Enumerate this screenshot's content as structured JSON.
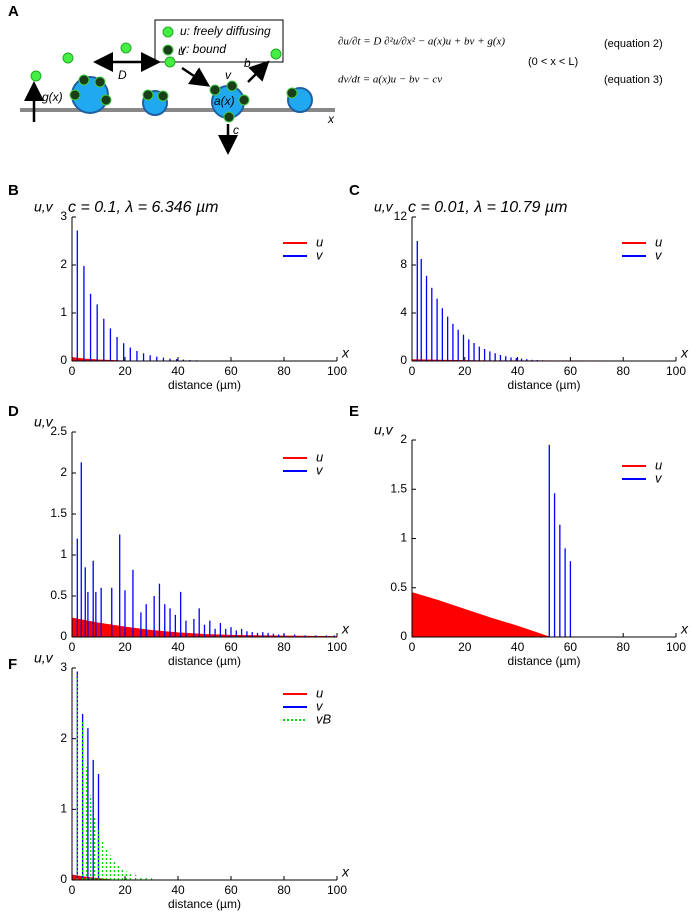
{
  "panel_a": {
    "letter": "A",
    "legend": [
      "u: freely diffusing",
      "v: bound"
    ],
    "labels": {
      "D": "D",
      "u": "u",
      "v": "v",
      "b": "b",
      "a": "a(x)",
      "g": "g(x)",
      "c": "c",
      "x": "x"
    },
    "equations": [
      {
        "text": "∂u/∂t = D ∂²u/∂x² − a(x)u + bv + g(x)",
        "tag": "(equation 2)"
      },
      {
        "text": "dv/dt = a(x)u − bv − cv",
        "tag": "(equation 3)"
      }
    ],
    "domain": "(0 < x < L)"
  },
  "chart_data": [
    {
      "type": "spike",
      "panel": "B",
      "ylabel": "u,v",
      "title": "c = 0.1, λ = 6.346 µm",
      "xlabel": "distance (µm)",
      "x_symbol": "x",
      "xlim": [
        0,
        100
      ],
      "ylim": [
        0,
        3
      ],
      "xticks": [
        0,
        20,
        40,
        60,
        80,
        100
      ],
      "yticks": [
        0,
        1,
        2,
        3
      ],
      "series": [
        {
          "name": "u",
          "color": "#ff0000",
          "kind": "area",
          "x": [
            0,
            5,
            10,
            15,
            20,
            100
          ],
          "values": [
            0.07,
            0.04,
            0.02,
            0.01,
            0,
            0
          ]
        },
        {
          "name": "v",
          "color": "#0000ff",
          "kind": "stem",
          "x": [
            2,
            4.5,
            7,
            9.5,
            12,
            14.5,
            17,
            19.5,
            22,
            24.5,
            27,
            29.5,
            32,
            34.5,
            37,
            39.5,
            42,
            44.5,
            47,
            49.5
          ],
          "values": [
            2.72,
            1.98,
            1.4,
            1.18,
            0.88,
            0.68,
            0.5,
            0.37,
            0.28,
            0.21,
            0.16,
            0.12,
            0.09,
            0.07,
            0.05,
            0.04,
            0.03,
            0.02,
            0.015,
            0.01
          ]
        }
      ]
    },
    {
      "type": "spike",
      "panel": "C",
      "ylabel": "u,v",
      "title": "c = 0.01, λ = 10.79 µm",
      "xlabel": "distance (µm)",
      "x_symbol": "x",
      "xlim": [
        0,
        100
      ],
      "ylim": [
        0,
        12
      ],
      "xticks": [
        0,
        20,
        40,
        60,
        80,
        100
      ],
      "yticks": [
        0,
        4,
        8,
        12
      ],
      "series": [
        {
          "name": "u",
          "color": "#ff0000",
          "kind": "area",
          "x": [
            0,
            10,
            20,
            30,
            100
          ],
          "values": [
            0.1,
            0.06,
            0.03,
            0.01,
            0
          ]
        },
        {
          "name": "v",
          "color": "#0000ff",
          "kind": "stem",
          "x": [
            2,
            3.5,
            5.5,
            7.5,
            9.5,
            11.5,
            13.5,
            15.5,
            17.5,
            19.5,
            21.5,
            23.5,
            25.5,
            27.5,
            29.5,
            31.5,
            33.5,
            35.5,
            37.5,
            39.5,
            41.5,
            43.5,
            45.5,
            47.5,
            49.5
          ],
          "values": [
            10,
            8.5,
            7.1,
            6.1,
            5.2,
            4.4,
            3.7,
            3.1,
            2.6,
            2.2,
            1.8,
            1.5,
            1.2,
            1,
            0.8,
            0.65,
            0.5,
            0.4,
            0.3,
            0.25,
            0.2,
            0.15,
            0.1,
            0.08,
            0.06
          ]
        }
      ]
    },
    {
      "type": "spike",
      "panel": "D",
      "ylabel": "u,v",
      "xlabel": "distance (µm)",
      "x_symbol": "x",
      "xlim": [
        0,
        100
      ],
      "ylim": [
        0,
        2.5
      ],
      "xticks": [
        0,
        20,
        40,
        60,
        80,
        100
      ],
      "yticks": [
        0,
        0.5,
        1,
        1.5,
        2,
        2.5
      ],
      "series": [
        {
          "name": "u",
          "color": "#ff0000",
          "kind": "area",
          "x": [
            0,
            10,
            20,
            30,
            40,
            50,
            60,
            80,
            100
          ],
          "values": [
            0.23,
            0.17,
            0.12,
            0.08,
            0.05,
            0.03,
            0.02,
            0.01,
            0.005
          ]
        },
        {
          "name": "v",
          "color": "#0000ff",
          "kind": "stem",
          "x": [
            2,
            3.5,
            5,
            6,
            8,
            9,
            11,
            15,
            18,
            20,
            23,
            26,
            28,
            31,
            33,
            35,
            37,
            39,
            41,
            43,
            46,
            48,
            50,
            52,
            54,
            56,
            58,
            60,
            62,
            64,
            66,
            68,
            70,
            72,
            74,
            76,
            78,
            80,
            84,
            88,
            92,
            96,
            99
          ],
          "values": [
            1.2,
            2.13,
            0.85,
            0.55,
            0.93,
            0.55,
            0.6,
            0.6,
            1.25,
            0.57,
            0.82,
            0.3,
            0.4,
            0.5,
            0.65,
            0.4,
            0.35,
            0.27,
            0.55,
            0.2,
            0.22,
            0.35,
            0.15,
            0.2,
            0.1,
            0.17,
            0.1,
            0.12,
            0.08,
            0.1,
            0.07,
            0.06,
            0.05,
            0.06,
            0.05,
            0.04,
            0.03,
            0.04,
            0.03,
            0.02,
            0.02,
            0.02,
            0.02
          ]
        }
      ]
    },
    {
      "type": "spike",
      "panel": "E",
      "ylabel": "u,v",
      "xlabel": "distance (µm)",
      "x_symbol": "x",
      "xlim": [
        0,
        100
      ],
      "ylim": [
        0,
        2
      ],
      "xticks": [
        0,
        20,
        40,
        60,
        80,
        100
      ],
      "yticks": [
        0,
        0.5,
        1,
        1.5,
        2
      ],
      "series": [
        {
          "name": "u",
          "color": "#ff0000",
          "kind": "area",
          "x": [
            0,
            10,
            20,
            30,
            40,
            52,
            100
          ],
          "values": [
            0.45,
            0.37,
            0.28,
            0.19,
            0.11,
            0,
            0
          ]
        },
        {
          "name": "v",
          "color": "#0000ff",
          "kind": "stem",
          "x": [
            52,
            54,
            56,
            58,
            60
          ],
          "values": [
            1.95,
            1.46,
            1.14,
            0.9,
            0.77
          ]
        }
      ]
    },
    {
      "type": "spike",
      "panel": "F",
      "ylabel": "u,v",
      "xlabel": "distance (µm)",
      "x_symbol": "x",
      "xlim": [
        0,
        100
      ],
      "ylim": [
        0,
        3
      ],
      "xticks": [
        0,
        20,
        40,
        60,
        80,
        100
      ],
      "yticks": [
        0,
        1,
        2,
        3
      ],
      "series": [
        {
          "name": "u",
          "color": "#ff0000",
          "kind": "area",
          "x": [
            0,
            5,
            10,
            15,
            100
          ],
          "values": [
            0.07,
            0.04,
            0.02,
            0,
            0
          ]
        },
        {
          "name": "v",
          "color": "#0000ff",
          "kind": "stem",
          "x": [
            2,
            4,
            6,
            8,
            10
          ],
          "values": [
            2.95,
            2.35,
            2.15,
            1.7,
            1.5
          ]
        },
        {
          "name": "vB",
          "color": "#00dd00",
          "kind": "stem",
          "linestyle": "dotted",
          "x": [
            2,
            4,
            5.5,
            7,
            8.5,
            10,
            11.5,
            13,
            14.5,
            16,
            17.5,
            19,
            20.5,
            22,
            24,
            26,
            28,
            30
          ],
          "values": [
            2.9,
            2.25,
            1.6,
            1.2,
            0.9,
            0.7,
            0.55,
            0.45,
            0.35,
            0.27,
            0.2,
            0.15,
            0.12,
            0.09,
            0.07,
            0.05,
            0.035,
            0.025
          ]
        }
      ]
    }
  ]
}
